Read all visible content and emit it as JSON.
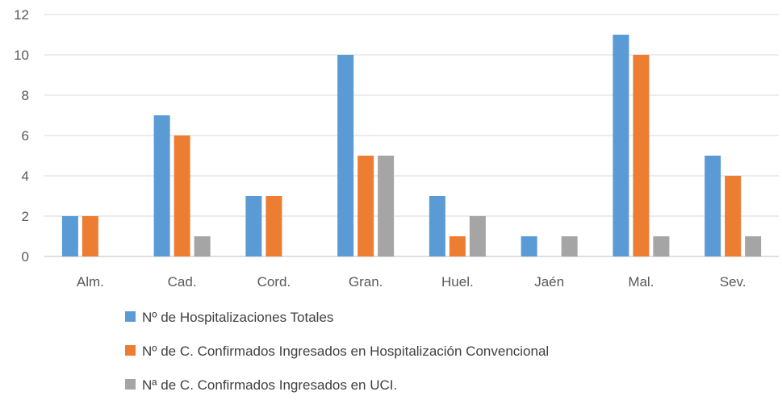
{
  "chart_data": {
    "type": "bar",
    "categories": [
      "Alm.",
      "Cad.",
      "Cord.",
      "Gran.",
      "Huel.",
      "Jaén",
      "Mal.",
      "Sev."
    ],
    "series": [
      {
        "name": "Nº de Hospitalizaciones Totales",
        "values": [
          2,
          7,
          3,
          10,
          3,
          1,
          11,
          5
        ],
        "color": "#5B9BD5"
      },
      {
        "name": "Nº de C. Confirmados Ingresados en Hospitalización Convencional",
        "values": [
          2,
          6,
          3,
          5,
          1,
          0,
          10,
          4
        ],
        "color": "#ED7D31"
      },
      {
        "name": "Nª de C. Confirmados Ingresados en UCI.",
        "values": [
          0,
          1,
          0,
          5,
          2,
          1,
          1,
          1
        ],
        "color": "#A5A5A5"
      }
    ],
    "ylim": [
      0,
      12
    ],
    "yticks": [
      "0",
      "2",
      "4",
      "6",
      "8",
      "10",
      "12"
    ],
    "grid": true,
    "legend_position": "bottom"
  }
}
